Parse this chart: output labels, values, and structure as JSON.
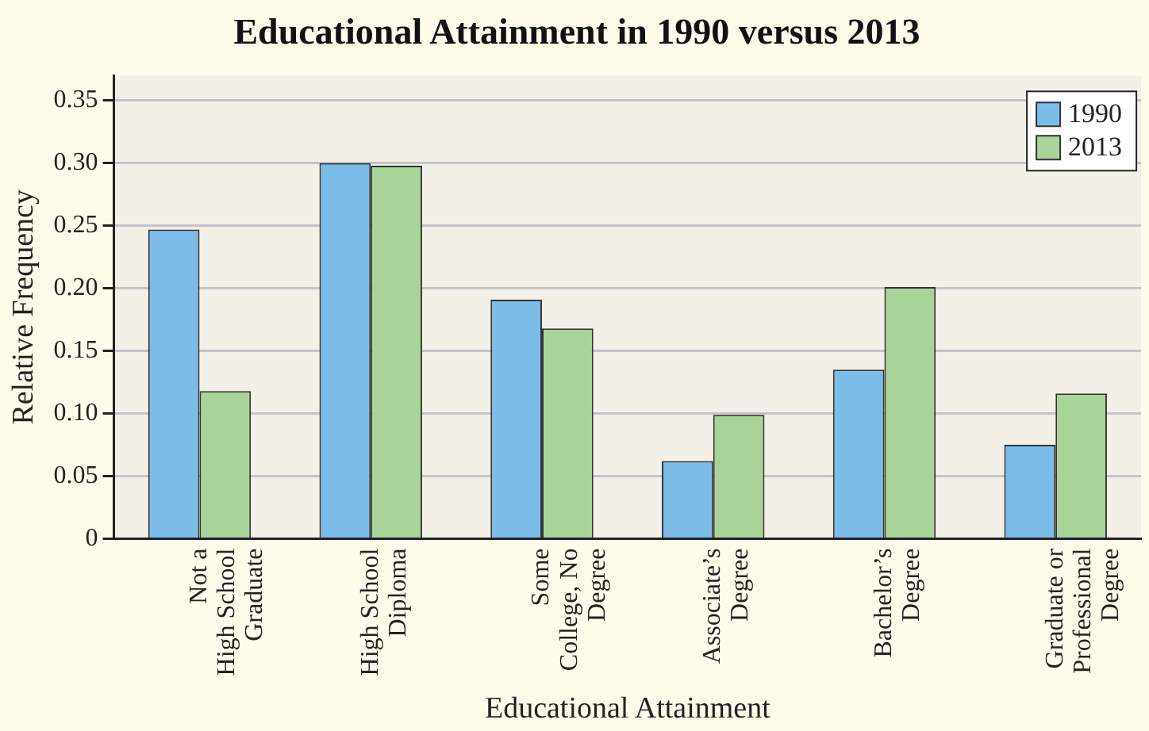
{
  "chart_data": {
    "type": "bar",
    "title": "Educational Attainment in 1990 versus 2013",
    "xlabel": "Educational Attainment",
    "ylabel": "Relative Frequency",
    "categories": [
      "Not a\nHigh School\nGraduate",
      "High School\nDiploma",
      "Some\nCollege, No\nDegree",
      "Associate’s\nDegree",
      "Bachelor’s\nDegree",
      "Graduate or\nProfessional\nDegree"
    ],
    "series": [
      {
        "name": "1990",
        "color": "#7bbde8",
        "values": [
          0.247,
          0.3,
          0.191,
          0.062,
          0.135,
          0.075
        ]
      },
      {
        "name": "2013",
        "color": "#a8d49a",
        "values": [
          0.118,
          0.298,
          0.168,
          0.099,
          0.201,
          0.116
        ]
      }
    ],
    "ylim": [
      0,
      0.37
    ],
    "yticks": [
      0,
      0.05,
      {
        "value": 0.1,
        "label": "0.10"
      },
      0.15,
      {
        "value": 0.2,
        "label": "0.20"
      },
      0.25,
      {
        "value": 0.3,
        "label": "0.30"
      },
      0.35
    ],
    "grid": "y",
    "legend": "top right"
  }
}
